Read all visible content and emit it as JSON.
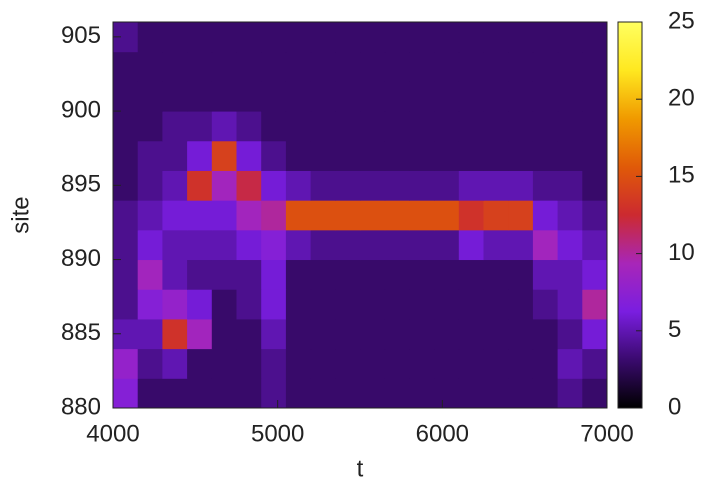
{
  "chart_data": {
    "type": "heatmap",
    "xlabel": "t",
    "ylabel": "site",
    "xlim": [
      4000,
      7000
    ],
    "xticks": [
      4000,
      5000,
      6000,
      7000
    ],
    "ylim": [
      880,
      906
    ],
    "yticks": [
      880,
      885,
      890,
      895,
      900,
      905
    ],
    "zlim": [
      0,
      25
    ],
    "zticks": [
      0,
      5,
      10,
      15,
      20,
      25
    ],
    "colormap": [
      "#000000",
      "#3a0a6e",
      "#7a1ee0",
      "#a826b8",
      "#cc2a30",
      "#e05a08",
      "#f09a00",
      "#ffe820",
      "#ffff60"
    ],
    "x_bins": [
      4000,
      4150,
      4300,
      4450,
      4600,
      4750,
      4900,
      5050,
      5200,
      5350,
      5500,
      5650,
      5800,
      5950,
      6100,
      6250,
      6400,
      6550,
      6700,
      6850,
      7000
    ],
    "y_bins": [
      880,
      882,
      884,
      886,
      888,
      890,
      892,
      894,
      896,
      898,
      900,
      902,
      904,
      906
    ],
    "z": [
      [
        7,
        3,
        3,
        3,
        3,
        3,
        4,
        3,
        3,
        3,
        3,
        3,
        3,
        3,
        3,
        3,
        3,
        3,
        4,
        3
      ],
      [
        8,
        4,
        5,
        3,
        3,
        3,
        4,
        3,
        3,
        3,
        3,
        3,
        3,
        3,
        3,
        3,
        3,
        3,
        5,
        4
      ],
      [
        5,
        5,
        13,
        9,
        3,
        3,
        5,
        3,
        3,
        3,
        3,
        3,
        3,
        3,
        3,
        3,
        3,
        3,
        4,
        6
      ],
      [
        4,
        7,
        8,
        6,
        3,
        4,
        6,
        3,
        3,
        3,
        3,
        3,
        3,
        3,
        3,
        3,
        3,
        4,
        5,
        10
      ],
      [
        4,
        9,
        5,
        4,
        4,
        4,
        6,
        3,
        3,
        3,
        3,
        3,
        3,
        3,
        3,
        3,
        3,
        5,
        5,
        6
      ],
      [
        4,
        6,
        5,
        5,
        5,
        6,
        7,
        5,
        4,
        4,
        4,
        4,
        4,
        4,
        6,
        5,
        5,
        9,
        6,
        5
      ],
      [
        4,
        5,
        6,
        6,
        6,
        9,
        10,
        15,
        15,
        15,
        15,
        15,
        15,
        15,
        13,
        14,
        14,
        6,
        5,
        4
      ],
      [
        3,
        4,
        5,
        13,
        9,
        12,
        6,
        5,
        4,
        4,
        4,
        4,
        4,
        4,
        5,
        5,
        5,
        4,
        4,
        3
      ],
      [
        3,
        4,
        4,
        6,
        14,
        6,
        4,
        3,
        3,
        3,
        3,
        3,
        3,
        3,
        3,
        3,
        3,
        3,
        3,
        3
      ],
      [
        3,
        3,
        4,
        4,
        5,
        4,
        3,
        3,
        3,
        3,
        3,
        3,
        3,
        3,
        3,
        3,
        3,
        3,
        3,
        3
      ],
      [
        3,
        3,
        3,
        3,
        3,
        3,
        3,
        3,
        3,
        3,
        3,
        3,
        3,
        3,
        3,
        3,
        3,
        3,
        3,
        3
      ],
      [
        3,
        3,
        3,
        3,
        3,
        3,
        3,
        3,
        3,
        3,
        3,
        3,
        3,
        3,
        3,
        3,
        3,
        3,
        3,
        3
      ],
      [
        4,
        3,
        3,
        3,
        3,
        3,
        3,
        3,
        3,
        3,
        3,
        3,
        3,
        3,
        3,
        3,
        3,
        3,
        3,
        3
      ]
    ]
  }
}
